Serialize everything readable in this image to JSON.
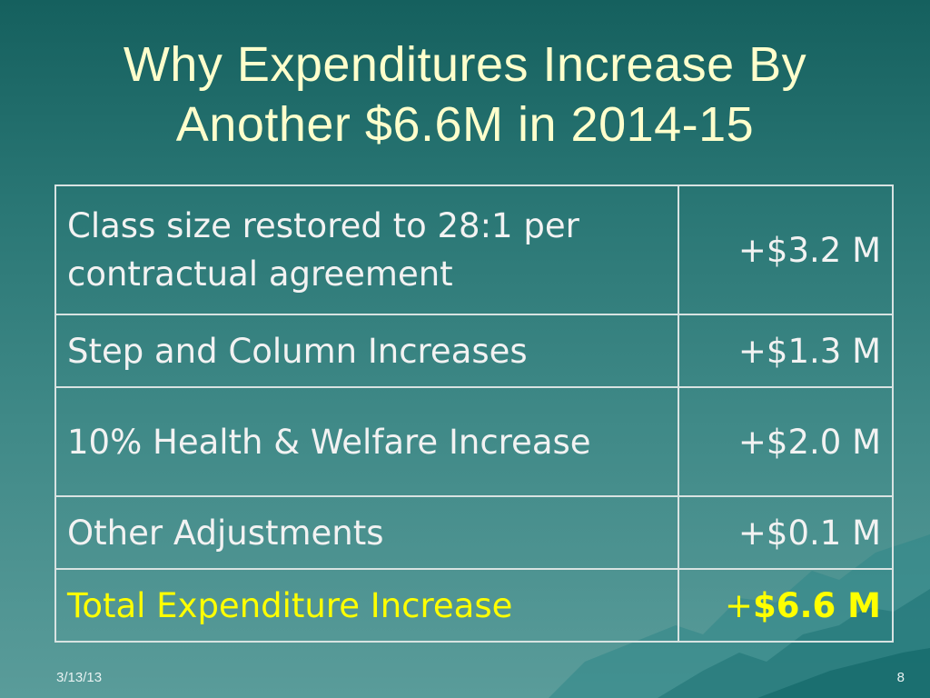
{
  "slide": {
    "title_line1": "Why Expenditures Increase By",
    "title_line2": "Another $6.6M in 2014-15",
    "rows": [
      {
        "label": "Class size restored to 28:1 per contractual agreement",
        "value": "+$3.2 M"
      },
      {
        "label": "Step and Column Increases",
        "value": "+$1.3 M"
      },
      {
        "label": "10% Health & Welfare Increase",
        "value": "+$2.0 M"
      },
      {
        "label": "Other Adjustments",
        "value": "+$0.1 M"
      }
    ],
    "total": {
      "label": "Total Expenditure Increase",
      "value_prefix": "+",
      "value_main": "$6.6 M"
    },
    "footer_date": "3/13/13",
    "page_number": "8"
  },
  "colors": {
    "title": "#ffffcc",
    "text": "#f2f2f2",
    "total_text": "#ffff00",
    "background_top": "#15605e",
    "background_bottom": "#5a9c9a"
  }
}
